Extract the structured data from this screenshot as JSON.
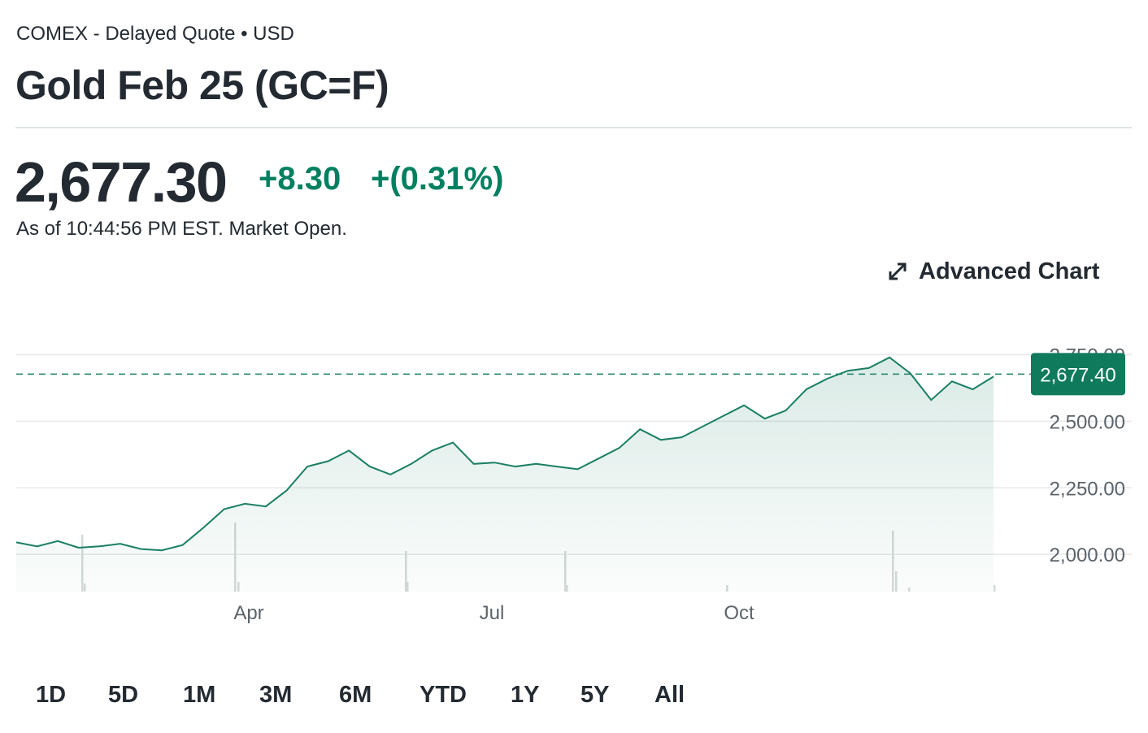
{
  "header": {
    "exchange": "COMEX - Delayed Quote • USD",
    "title": "Gold Feb 25 (GC=F)"
  },
  "quote": {
    "price": "2,677.30",
    "change": "+8.30",
    "change_percent": "+(0.31%)",
    "as_of": "As of 10:44:56 PM EST. Market Open."
  },
  "advanced_chart_label": "Advanced Chart",
  "ranges": [
    "1D",
    "5D",
    "1M",
    "3M",
    "6M",
    "YTD",
    "1Y",
    "5Y",
    "All"
  ],
  "colors": {
    "line": "#1a7f64",
    "positive": "#008060",
    "tag": "#0f7a5c",
    "grid": "#e6e8eb"
  },
  "chart_data": {
    "type": "area",
    "title": "",
    "xlabel": "",
    "ylabel": "",
    "x_tick_labels": [
      "Apr",
      "Jul",
      "Oct"
    ],
    "y_ticks": [
      2000,
      2250,
      2500,
      2750
    ],
    "y_tick_labels": [
      "2,000.00",
      "2,250.00",
      "2,500.00",
      "2,750.00"
    ],
    "ylim": [
      1860,
      2770
    ],
    "current_value": 2677.4,
    "current_label": "2,677.40",
    "x": [
      "Jan",
      "Jan",
      "Jan",
      "Jan",
      "Feb",
      "Feb",
      "Feb",
      "Feb",
      "Mar",
      "Mar",
      "Mar",
      "Mar",
      "Apr",
      "Apr",
      "Apr",
      "Apr",
      "May",
      "May",
      "May",
      "May",
      "Jun",
      "Jun",
      "Jun",
      "Jun",
      "Jul",
      "Jul",
      "Jul",
      "Jul",
      "Aug",
      "Aug",
      "Aug",
      "Aug",
      "Sep",
      "Sep",
      "Sep",
      "Sep",
      "Oct",
      "Oct",
      "Oct",
      "Oct",
      "Nov",
      "Nov",
      "Nov",
      "Nov",
      "Dec",
      "Dec",
      "Dec",
      "Dec"
    ],
    "series": [
      {
        "values": [
          2045,
          2030,
          2050,
          2025,
          2030,
          2040,
          2020,
          2015,
          2035,
          2100,
          2170,
          2190,
          2180,
          2240,
          2330,
          2350,
          2390,
          2330,
          2300,
          2340,
          2390,
          2420,
          2340,
          2345,
          2330,
          2340,
          2330,
          2320,
          2360,
          2400,
          2470,
          2430,
          2440,
          2480,
          2520,
          2560,
          2510,
          2540,
          2620,
          2660,
          2690,
          2700,
          2740,
          2680,
          2580,
          2650,
          2620,
          2668
        ]
      }
    ],
    "grid": true,
    "legend": "none"
  }
}
